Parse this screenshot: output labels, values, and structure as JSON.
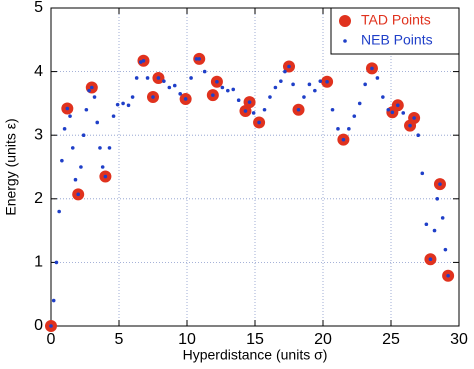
{
  "chart_data": {
    "type": "scatter",
    "xlabel": "Hyperdistance (units σ)",
    "ylabel": "Energy (units ε)",
    "xlim": [
      0,
      30
    ],
    "ylim": [
      0,
      5
    ],
    "xticks": [
      0,
      5,
      10,
      15,
      20,
      25,
      30
    ],
    "yticks": [
      0,
      1,
      2,
      3,
      4,
      5
    ],
    "grid": true,
    "legend": "upper right",
    "series": [
      {
        "name": "TAD Points",
        "color": "#e0321e",
        "marker": "large",
        "x": [
          0,
          1.2,
          2.0,
          3.0,
          4.0,
          6.8,
          7.5,
          7.9,
          9.9,
          10.9,
          11.9,
          12.2,
          14.3,
          14.6,
          15.3,
          17.5,
          18.2,
          20.3,
          21.5,
          23.6,
          25.1,
          25.5,
          26.4,
          26.7,
          27.9,
          28.6,
          29.2
        ],
        "values": [
          0,
          3.42,
          2.07,
          3.75,
          2.35,
          4.17,
          3.6,
          3.9,
          3.57,
          4.2,
          3.63,
          3.84,
          3.38,
          3.52,
          3.2,
          4.08,
          3.4,
          3.84,
          2.93,
          4.05,
          3.36,
          3.47,
          3.15,
          3.27,
          1.05,
          2.23,
          0.79
        ]
      },
      {
        "name": "NEB Points",
        "color": "#1f3fc8",
        "marker": "small",
        "x": [
          0,
          0.2,
          0.4,
          0.6,
          0.8,
          1.0,
          1.2,
          1.4,
          1.6,
          1.8,
          2.0,
          2.2,
          2.4,
          2.6,
          2.8,
          3.0,
          3.2,
          3.4,
          3.6,
          3.8,
          4.0,
          4.3,
          4.6,
          4.9,
          5.3,
          5.7,
          6.0,
          6.3,
          6.6,
          6.8,
          7.1,
          7.5,
          7.9,
          8.3,
          8.7,
          9.1,
          9.5,
          9.9,
          10.3,
          10.7,
          10.9,
          11.3,
          11.9,
          12.2,
          12.6,
          13.0,
          13.4,
          13.8,
          14.3,
          14.6,
          14.9,
          15.3,
          15.7,
          16.1,
          16.5,
          16.9,
          17.2,
          17.5,
          17.8,
          18.2,
          18.6,
          19.0,
          19.4,
          19.8,
          20.3,
          20.7,
          21.1,
          21.5,
          21.9,
          22.3,
          22.7,
          23.1,
          23.6,
          24.0,
          24.4,
          24.8,
          25.1,
          25.5,
          25.9,
          26.4,
          26.7,
          27.0,
          27.3,
          27.6,
          27.9,
          28.2,
          28.4,
          28.6,
          28.8,
          29.0,
          29.2
        ],
        "values": [
          0,
          0.4,
          1.0,
          1.8,
          2.6,
          3.1,
          3.42,
          3.3,
          2.8,
          2.3,
          2.07,
          2.5,
          3.0,
          3.4,
          3.7,
          3.75,
          3.6,
          3.2,
          2.8,
          2.5,
          2.35,
          2.8,
          3.3,
          3.48,
          3.5,
          3.47,
          3.6,
          3.9,
          4.15,
          4.17,
          3.9,
          3.6,
          3.9,
          3.85,
          3.75,
          3.78,
          3.65,
          3.57,
          3.9,
          4.2,
          4.2,
          4.0,
          3.63,
          3.84,
          3.75,
          3.7,
          3.72,
          3.55,
          3.38,
          3.52,
          3.35,
          3.2,
          3.4,
          3.6,
          3.75,
          3.85,
          4.0,
          4.08,
          3.8,
          3.4,
          3.6,
          3.8,
          3.7,
          3.85,
          3.84,
          3.4,
          3.1,
          2.93,
          3.1,
          3.3,
          3.5,
          3.8,
          4.05,
          3.9,
          3.6,
          3.4,
          3.36,
          3.47,
          3.35,
          3.15,
          3.27,
          3.0,
          2.4,
          1.6,
          1.05,
          1.5,
          2.0,
          2.23,
          1.7,
          1.2,
          0.79
        ]
      }
    ]
  }
}
